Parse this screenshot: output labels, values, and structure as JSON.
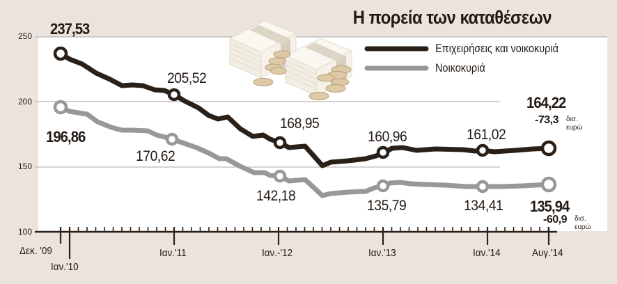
{
  "title": "Η πορεία των καταθέσεων",
  "legend": [
    {
      "label": "Επιχειρήσεις και νοικοκυριά",
      "color": "#2a2018"
    },
    {
      "label": "Νοικοκυριά",
      "color": "#9a9896"
    }
  ],
  "yaxis": {
    "ticks": [
      "250",
      "200",
      "150",
      "100"
    ]
  },
  "xaxis": {
    "labels": [
      "Δεκ. '09",
      "Ιαν.'10",
      "Ιαν.'11",
      "Ιαν.-'12",
      "Ιαν.'13",
      "Ιαν.'14",
      "Αυγ.'14"
    ]
  },
  "annotations": {
    "black": [
      "237,53",
      "205,52",
      "168,95",
      "160,96",
      "161,02",
      "164,22"
    ],
    "grey": [
      "196,86",
      "170,62",
      "142,18",
      "135,79",
      "134,41",
      "135,94"
    ],
    "black_change": "-73,3",
    "grey_change": "-60,9",
    "unit": "δισ.\nευρώ"
  },
  "chart_data": {
    "type": "line",
    "title": "Η πορεία των καταθέσεων",
    "xlabel": "",
    "ylabel": "",
    "ylim": [
      100,
      250
    ],
    "yticks": [
      100,
      150,
      200,
      250
    ],
    "grid": true,
    "legend_position": "top-right",
    "x": [
      "Δεκ. '09",
      "Ιαν.'11",
      "Ιαν.-'12",
      "Ιαν.'13",
      "Ιαν.'14",
      "Αυγ.'14"
    ],
    "x_tick_labels": [
      "Δεκ. '09",
      "Ιαν.'10",
      "Ιαν.'11",
      "Ιαν.-'12",
      "Ιαν.'13",
      "Ιαν.'14",
      "Αυγ.'14"
    ],
    "series": [
      {
        "name": "Επιχειρήσεις και νοικοκυριά",
        "values": [
          237.53,
          205.52,
          168.95,
          160.96,
          161.02,
          164.22
        ],
        "change": -73.3,
        "color": "#2a2018"
      },
      {
        "name": "Νοικοκυριά",
        "values": [
          196.86,
          170.62,
          142.18,
          135.79,
          134.41,
          135.94
        ],
        "change": -60.9,
        "color": "#9a9896"
      }
    ],
    "unit": "δισ. ευρώ"
  }
}
